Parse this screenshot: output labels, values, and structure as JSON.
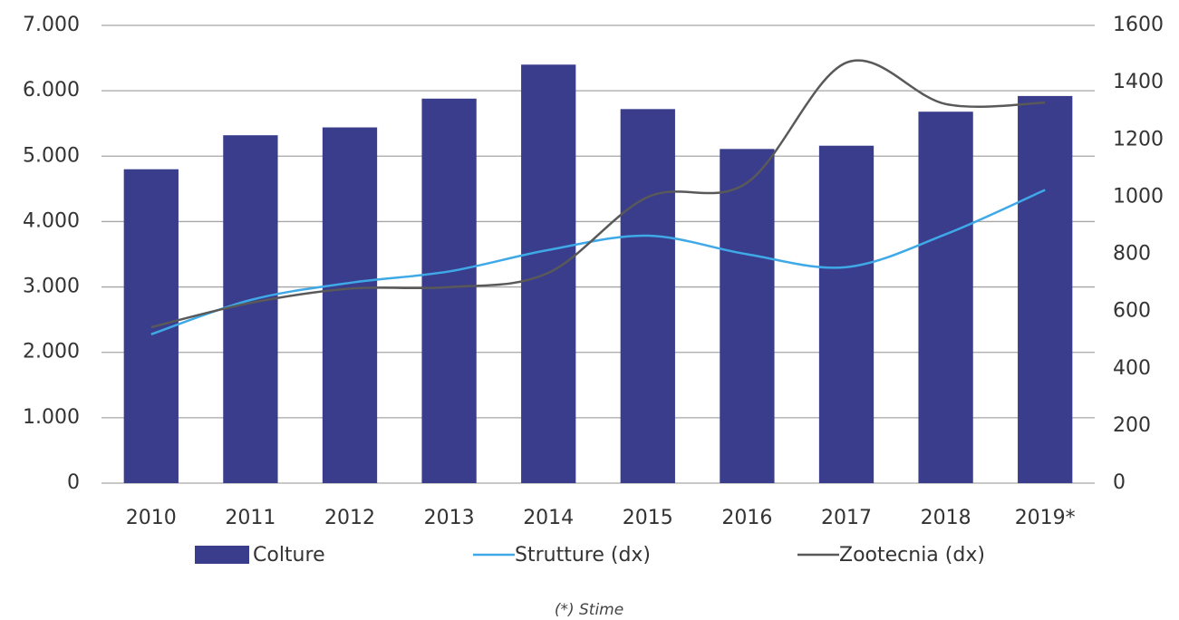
{
  "chart_data": {
    "type": "bar",
    "categories": [
      "2010",
      "2011",
      "2012",
      "2013",
      "2014",
      "2015",
      "2016",
      "2017",
      "2018",
      "2019*"
    ],
    "series": [
      {
        "name": "Colture",
        "type": "bar",
        "color": "#393d8b",
        "axis": "y",
        "values": [
          4800,
          5320,
          5440,
          5880,
          6400,
          5720,
          5110,
          5160,
          5680,
          5920
        ]
      },
      {
        "name": "Strutture (dx)",
        "type": "line",
        "color": "#3fa9e8",
        "axis": "y2",
        "values": [
          520,
          640,
          700,
          740,
          815,
          865,
          800,
          755,
          870,
          1025
        ]
      },
      {
        "name": "Zootecnia (dx)",
        "type": "line",
        "color": "#595959",
        "axis": "y2",
        "values": [
          545,
          630,
          680,
          685,
          735,
          1000,
          1050,
          1470,
          1325,
          1330
        ]
      }
    ],
    "ylim": [
      0,
      7000
    ],
    "yticks": [
      0,
      {
        "value": 1000,
        "label": "1.000"
      },
      {
        "value": 2000,
        "label": "2.000"
      },
      {
        "value": 3000,
        "label": "3.000"
      },
      {
        "value": 4000,
        "label": "4.000"
      },
      {
        "value": 5000,
        "label": "5.000"
      },
      {
        "value": 6000,
        "label": "6.000"
      },
      {
        "value": 7000,
        "label": "7.000"
      }
    ],
    "y2lim": [
      0,
      1600
    ],
    "y2ticks": [
      0,
      200,
      400,
      600,
      800,
      1000,
      1200,
      1400,
      1600
    ],
    "grid": true,
    "legend": "bottom",
    "note": "(*) Stime"
  }
}
